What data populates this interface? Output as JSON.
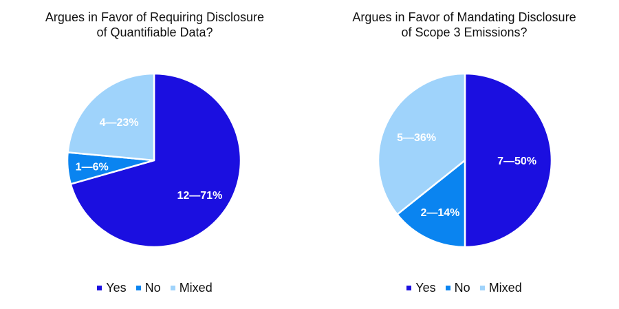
{
  "colors": {
    "yes": "#1b0fe0",
    "no": "#0a84f0",
    "mixed": "#9fd3fb"
  },
  "chart_data": [
    {
      "type": "pie",
      "title_lines": [
        "Argues in Favor of Requiring Disclosure",
        "of Quantifiable Data?"
      ],
      "categories": [
        "Yes",
        "No",
        "Mixed"
      ],
      "values": [
        12,
        1,
        4
      ],
      "percents": [
        71,
        6,
        23
      ],
      "labels": [
        "12—71%",
        "1—6%",
        "4—23%"
      ],
      "legend": [
        "Yes",
        "No",
        "Mixed"
      ]
    },
    {
      "type": "pie",
      "title_lines": [
        "Argues in Favor of Mandating Disclosure",
        "of Scope 3 Emissions?"
      ],
      "categories": [
        "Yes",
        "No",
        "Mixed"
      ],
      "values": [
        7,
        2,
        5
      ],
      "percents": [
        50,
        14,
        36
      ],
      "labels": [
        "7—50%",
        "2—14%",
        "5—36%"
      ],
      "legend": [
        "Yes",
        "No",
        "Mixed"
      ]
    }
  ]
}
